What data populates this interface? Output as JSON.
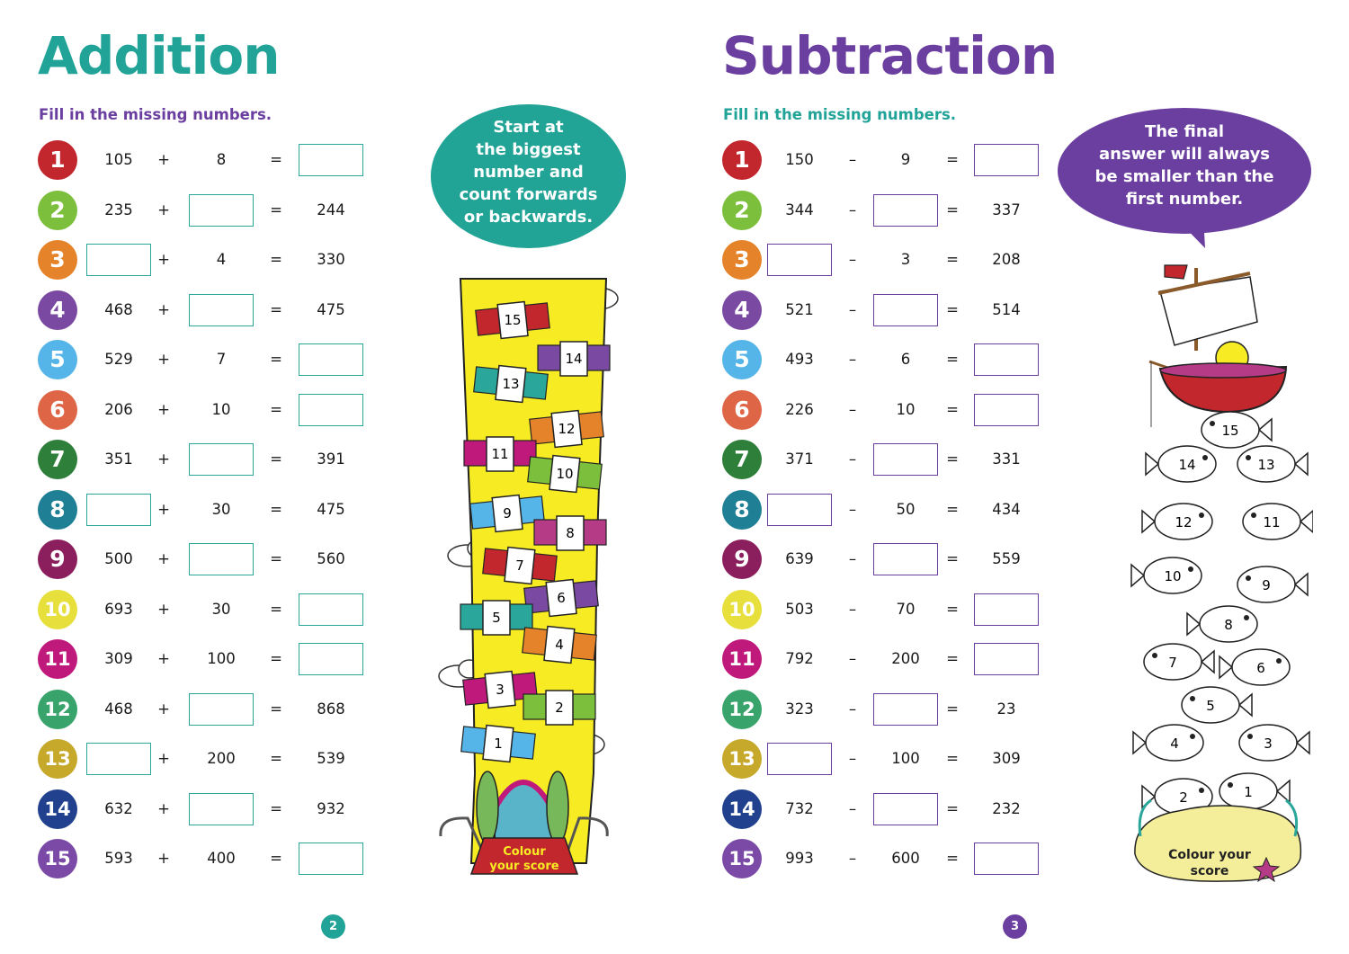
{
  "colors": {
    "teal": "#22a398",
    "purple": "#6b3fa0",
    "badges": [
      "#c1272d",
      "#7cbf3c",
      "#e5832a",
      "#7a4aa3",
      "#56b5e8",
      "#df6547",
      "#2d7f3a",
      "#1f7f94",
      "#8b1f5e",
      "#e7df3b",
      "#c0197c",
      "#38a36b",
      "#c6a92b",
      "#21418f",
      "#7b4aa7"
    ]
  },
  "addition": {
    "title": "Addition",
    "instruction": "Fill in the missing numbers.",
    "operator": "+",
    "equals": "=",
    "rows": [
      {
        "n": "1",
        "a": "105",
        "b": "8",
        "c": ""
      },
      {
        "n": "2",
        "a": "235",
        "b": "",
        "c": "244"
      },
      {
        "n": "3",
        "a": "",
        "b": "4",
        "c": "330"
      },
      {
        "n": "4",
        "a": "468",
        "b": "",
        "c": "475"
      },
      {
        "n": "5",
        "a": "529",
        "b": "7",
        "c": ""
      },
      {
        "n": "6",
        "a": "206",
        "b": "10",
        "c": ""
      },
      {
        "n": "7",
        "a": "351",
        "b": "",
        "c": "391"
      },
      {
        "n": "8",
        "a": "",
        "b": "30",
        "c": "475"
      },
      {
        "n": "9",
        "a": "500",
        "b": "",
        "c": "560"
      },
      {
        "n": "10",
        "a": "693",
        "b": "30",
        "c": ""
      },
      {
        "n": "11",
        "a": "309",
        "b": "100",
        "c": ""
      },
      {
        "n": "12",
        "a": "468",
        "b": "",
        "c": "868"
      },
      {
        "n": "13",
        "a": "",
        "b": "200",
        "c": "539"
      },
      {
        "n": "14",
        "a": "632",
        "b": "",
        "c": "932"
      },
      {
        "n": "15",
        "a": "593",
        "b": "400",
        "c": ""
      }
    ],
    "tip": [
      "Start at",
      "the biggest",
      "number and",
      "count forwards",
      "or backwards."
    ],
    "score_label": [
      "Colour",
      "your score"
    ],
    "score_numbers": [
      "15",
      "14",
      "13",
      "12",
      "11",
      "10",
      "9",
      "8",
      "7",
      "6",
      "5",
      "4",
      "3",
      "2",
      "1"
    ],
    "page_number": "2"
  },
  "subtraction": {
    "title": "Subtraction",
    "instruction": "Fill in the missing numbers.",
    "operator": "–",
    "equals": "=",
    "rows": [
      {
        "n": "1",
        "a": "150",
        "b": "9",
        "c": ""
      },
      {
        "n": "2",
        "a": "344",
        "b": "",
        "c": "337"
      },
      {
        "n": "3",
        "a": "",
        "b": "3",
        "c": "208"
      },
      {
        "n": "4",
        "a": "521",
        "b": "",
        "c": "514"
      },
      {
        "n": "5",
        "a": "493",
        "b": "6",
        "c": ""
      },
      {
        "n": "6",
        "a": "226",
        "b": "10",
        "c": ""
      },
      {
        "n": "7",
        "a": "371",
        "b": "",
        "c": "331"
      },
      {
        "n": "8",
        "a": "",
        "b": "50",
        "c": "434"
      },
      {
        "n": "9",
        "a": "639",
        "b": "",
        "c": "559"
      },
      {
        "n": "10",
        "a": "503",
        "b": "70",
        "c": ""
      },
      {
        "n": "11",
        "a": "792",
        "b": "200",
        "c": ""
      },
      {
        "n": "12",
        "a": "323",
        "b": "",
        "c": "23"
      },
      {
        "n": "13",
        "a": "",
        "b": "100",
        "c": "309"
      },
      {
        "n": "14",
        "a": "732",
        "b": "",
        "c": "232"
      },
      {
        "n": "15",
        "a": "993",
        "b": "600",
        "c": ""
      }
    ],
    "tip": [
      "The final",
      "answer will always",
      "be smaller than the",
      "first number."
    ],
    "score_label": [
      "Colour your",
      "score"
    ],
    "score_numbers": [
      "15",
      "14",
      "13",
      "12",
      "11",
      "10",
      "9",
      "8",
      "7",
      "6",
      "5",
      "4",
      "3",
      "2",
      "1"
    ],
    "page_number": "3"
  }
}
